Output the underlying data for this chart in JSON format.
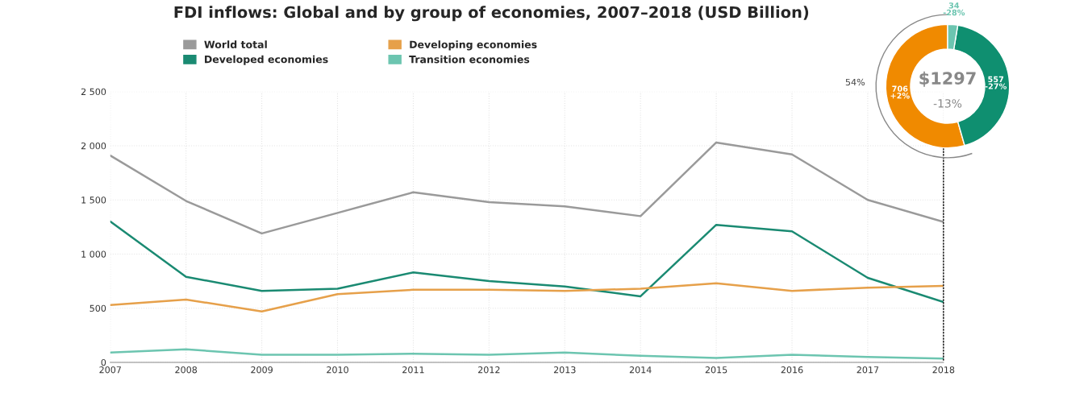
{
  "chart_data": [
    {
      "type": "line",
      "title": "FDI inflows: Global and by group of economies, 2007–2018 (USD Billion)",
      "x": [
        2007,
        2008,
        2009,
        2010,
        2011,
        2012,
        2013,
        2014,
        2015,
        2016,
        2017,
        2018
      ],
      "series": [
        {
          "name": "World total",
          "color": "#9a9a9a",
          "values": [
            1910,
            1490,
            1190,
            1380,
            1570,
            1480,
            1440,
            1350,
            2030,
            1920,
            1500,
            1297
          ]
        },
        {
          "name": "Developed economies",
          "color": "#1a8a72",
          "values": [
            1300,
            790,
            660,
            680,
            830,
            750,
            700,
            610,
            1270,
            1210,
            780,
            557
          ]
        },
        {
          "name": "Developing economies",
          "color": "#e6a04a",
          "values": [
            530,
            580,
            470,
            630,
            670,
            670,
            660,
            680,
            730,
            660,
            690,
            706
          ]
        },
        {
          "name": "Transition economies",
          "color": "#6cc5b0",
          "values": [
            90,
            120,
            70,
            70,
            80,
            70,
            90,
            60,
            40,
            70,
            50,
            34
          ]
        }
      ],
      "xlim": [
        2007,
        2018
      ],
      "xticks": [
        2007,
        2008,
        2009,
        2010,
        2011,
        2012,
        2013,
        2014,
        2015,
        2016,
        2017,
        2018
      ],
      "ylim": [
        0,
        2500
      ],
      "yticks": [
        0,
        500,
        {
          "value": 1000,
          "label": "1 000"
        },
        {
          "value": 1500,
          "label": "1 500"
        },
        {
          "value": 2000,
          "label": "2 000"
        },
        {
          "value": 2500,
          "label": "2 500"
        }
      ],
      "grid": true,
      "legend": "top left",
      "marker": "none",
      "line_style": "solid"
    },
    {
      "type": "donut",
      "categories": [
        null,
        null,
        null
      ],
      "values": [
        706,
        557,
        34
      ],
      "colors": [
        "#f08a00",
        "#0f8f70",
        "#6cc5b0"
      ],
      "value_labels": [
        "706\n+2%",
        "557\n-27%",
        "34\n-28%"
      ],
      "annotations": [
        "$1297",
        "-13%",
        "54%"
      ]
    }
  ]
}
